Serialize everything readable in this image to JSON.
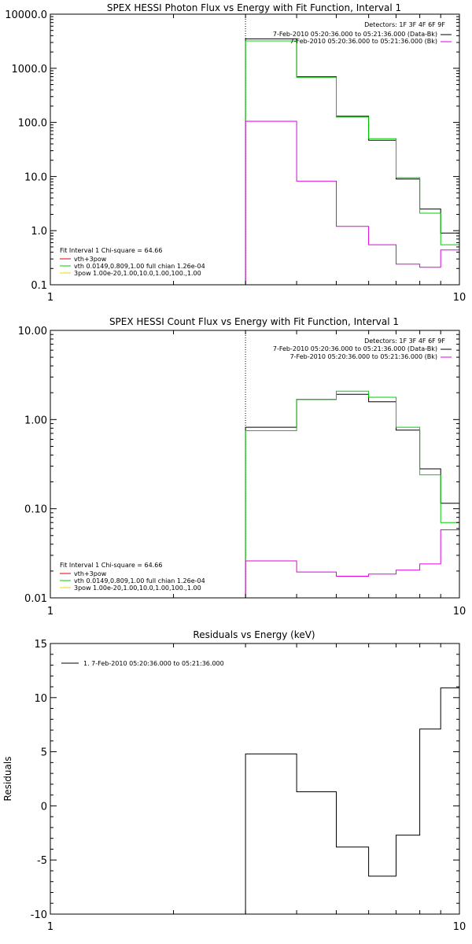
{
  "colors": {
    "black": "#000000",
    "green": "#00d000",
    "magenta": "#e000e0",
    "red": "#e00000",
    "yellow": "#e0e000"
  },
  "chart_data": [
    {
      "type": "line",
      "title": "SPEX HESSI Photon Flux vs Energy with Fit Function, Interval 1",
      "xscale": "log",
      "yscale": "log",
      "xlim": [
        1,
        10
      ],
      "ylim": [
        0.1,
        10000
      ],
      "xticklabels": [
        "1",
        "10"
      ],
      "yticks": [
        0.1,
        1,
        10,
        100,
        1000,
        10000
      ],
      "yticklabels": [
        "0.1",
        "1.0",
        "10.0",
        "100.0",
        "1000.0",
        "10000.0"
      ],
      "legend_top": {
        "detectors": "Detectors: 1F 3F 4F 6F 9F",
        "entries": [
          {
            "text": "7-Feb-2010 05:20:36.000 to 05:21:36.000 (Data-Bk)",
            "color": "black"
          },
          {
            "text": "7-Feb-2010 05:20:36.000 to 05:21:36.000 (Bk)",
            "color": "magenta"
          }
        ]
      },
      "legend_bottom": {
        "header": "Fit Interval 1   Chi-square = 64.66",
        "entries": [
          {
            "text": "vth+3pow",
            "color": "red"
          },
          {
            "text": "vth 0.0149,0.809,1.00  full chian 1.26e-04",
            "color": "green"
          },
          {
            "text": "3pow 1.00e-20,1.00,10.0,1.00,100.,1.00",
            "color": "yellow"
          }
        ]
      },
      "vline_x": 3.0,
      "edges": [
        3.0,
        4.0,
        5.0,
        6.0,
        7.0,
        8.0,
        9.0,
        10.0
      ],
      "series": [
        {
          "name": "(Data-Bk)",
          "color": "black",
          "values": [
            3500,
            700,
            130,
            47,
            9,
            2.5,
            0.9
          ]
        },
        {
          "name": "vth+3pow",
          "color": "green",
          "values": [
            3200,
            680,
            125,
            50,
            9.5,
            2.1,
            0.55
          ]
        },
        {
          "name": "(Bk)",
          "color": "magenta",
          "values": [
            105,
            8.2,
            1.2,
            0.55,
            0.24,
            0.21,
            0.44
          ]
        }
      ]
    },
    {
      "type": "line",
      "title": "SPEX HESSI Count Flux vs Energy with Fit Function, Interval 1",
      "xscale": "log",
      "yscale": "log",
      "xlim": [
        1,
        10
      ],
      "ylim": [
        0.01,
        10
      ],
      "xticklabels": [
        "1",
        "10"
      ],
      "yticks": [
        0.01,
        0.1,
        1,
        10
      ],
      "yticklabels": [
        "0.01",
        "0.10",
        "1.00",
        "10.00"
      ],
      "legend_top": {
        "detectors": "Detectors: 1F 3F 4F 6F 9F",
        "entries": [
          {
            "text": "7-Feb-2010 05:20:36.000 to 05:21:36.000 (Data-Bk)",
            "color": "black"
          },
          {
            "text": "7-Feb-2010 05:20:36.000 to 05:21:36.000 (Bk)",
            "color": "magenta"
          }
        ]
      },
      "legend_bottom": {
        "header": "Fit Interval 1   Chi-square = 64.66",
        "entries": [
          {
            "text": "vth+3pow",
            "color": "red"
          },
          {
            "text": "vth 0.0149,0.809,1.00  full chian 1.26e-04",
            "color": "green"
          },
          {
            "text": "3pow 1.00e-20,1.00,10.0,1.00,100.,1.00",
            "color": "yellow"
          }
        ]
      },
      "vline_x": 3.0,
      "edges": [
        3.0,
        4.0,
        5.0,
        6.0,
        7.0,
        8.0,
        9.0,
        10.0
      ],
      "series": [
        {
          "name": "(Data-Bk)",
          "color": "black",
          "values": [
            0.82,
            1.68,
            1.92,
            1.58,
            0.76,
            0.28,
            0.115
          ]
        },
        {
          "name": "vth+3pow",
          "color": "green",
          "values": [
            0.75,
            1.68,
            2.08,
            1.78,
            0.82,
            0.24,
            0.07
          ]
        },
        {
          "name": "(Bk)",
          "color": "magenta",
          "values": [
            0.026,
            0.0195,
            0.0175,
            0.0185,
            0.0205,
            0.024,
            0.058
          ]
        }
      ]
    },
    {
      "type": "line",
      "title": "Residuals vs Energy (keV)",
      "xscale": "log",
      "yscale": "linear",
      "xlim": [
        1,
        10
      ],
      "ylim": [
        -10,
        15
      ],
      "xticklabels": [
        "1",
        "10"
      ],
      "yticks": [
        -10,
        -5,
        0,
        5,
        10,
        15
      ],
      "yticklabels": [
        "-10",
        "-5",
        "0",
        "5",
        "10",
        "15"
      ],
      "ylabel": "Residuals",
      "legend_entry": "1.  7-Feb-2010 05:20:36.000 to 05:21:36.000",
      "edges": [
        3.0,
        4.0,
        5.0,
        6.0,
        7.0,
        8.0,
        9.0,
        10.0
      ],
      "series": [
        {
          "color": "black",
          "values": [
            4.8,
            1.3,
            -3.8,
            -6.5,
            -2.7,
            7.1,
            10.9
          ]
        }
      ]
    }
  ]
}
